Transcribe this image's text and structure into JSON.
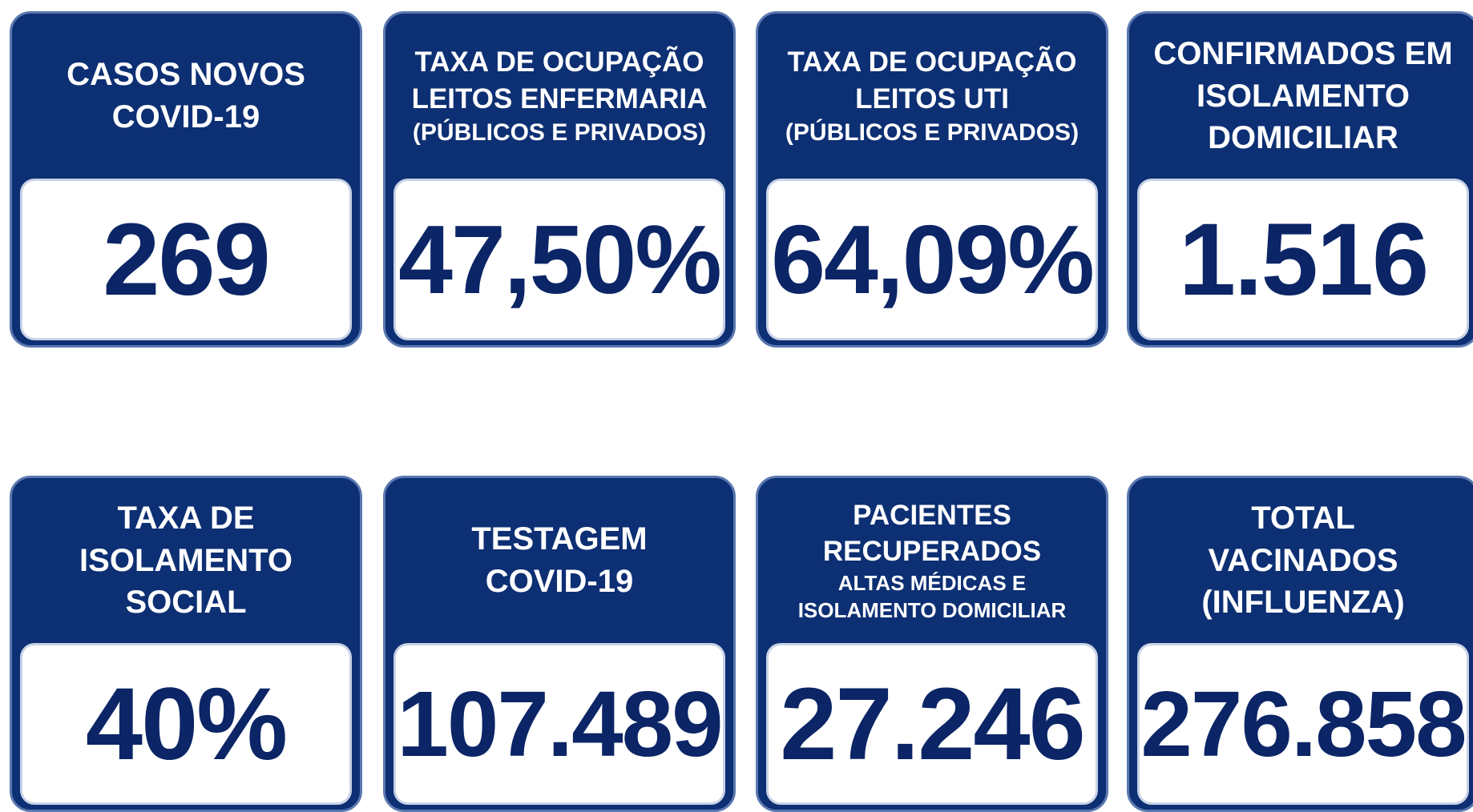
{
  "cards": [
    {
      "title": [
        "CASOS NOVOS",
        "COVID-19"
      ],
      "value": "269"
    },
    {
      "title": [
        "TAXA DE OCUPAÇÃO",
        "LEITOS ENFERMARIA"
      ],
      "subtitle": [
        "(PÚBLICOS E PRIVADOS)"
      ],
      "value": "47,50%"
    },
    {
      "title": [
        "TAXA DE OCUPAÇÃO",
        "LEITOS UTI"
      ],
      "subtitle": [
        "(PÚBLICOS E PRIVADOS)"
      ],
      "value": "64,09%"
    },
    {
      "title": [
        "CONFIRMADOS EM",
        "ISOLAMENTO",
        "DOMICILIAR"
      ],
      "value": "1.516"
    },
    {
      "title": [
        "TAXA DE",
        "ISOLAMENTO",
        "SOCIAL"
      ],
      "value": "40%"
    },
    {
      "title": [
        "TESTAGEM",
        "COVID-19"
      ],
      "value": "107.489"
    },
    {
      "title": [
        "PACIENTES",
        "RECUPERADOS"
      ],
      "subtitle": [
        "ALTAS MÉDICAS E",
        "ISOLAMENTO DOMICILIAR"
      ],
      "value": "27.246"
    },
    {
      "title": [
        "TOTAL",
        "VACINADOS",
        "(INFLUENZA)"
      ],
      "value": "276.858"
    }
  ]
}
